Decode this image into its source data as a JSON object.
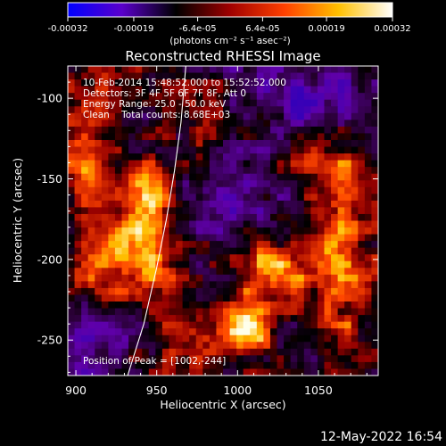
{
  "colorbar": {
    "ticks": [
      "-0.00032",
      "-0.00019",
      "-6.4e-05",
      "6.4e-05",
      "0.00019",
      "0.00032"
    ],
    "units_text": "(photons cm⁻² s⁻¹ asec⁻²)",
    "min": -0.00032,
    "max": 0.00032,
    "colors": [
      "#0000ff",
      "#5a00cc",
      "#000000",
      "#a00000",
      "#ff4000",
      "#ffc000",
      "#ffffff"
    ]
  },
  "chart_data": {
    "type": "heatmap",
    "title": "Reconstructed RHESSI Image",
    "xlabel": "Heliocentric X (arcsec)",
    "ylabel": "Heliocentric Y (arcsec)",
    "xlim": [
      895,
      1087
    ],
    "ylim": [
      -272,
      -80
    ],
    "x_ticks": [
      900,
      950,
      1000,
      1050
    ],
    "y_ticks": [
      -100,
      -150,
      -200,
      -250
    ],
    "annotations": [
      "10-Feb-2014 15:48:52.000 to 15:52:52.000",
      "Detectors: 3F 4F 5F 6F 7F 8F, Att 0",
      "Energy Range: 25.0 - 50.0 keV",
      "Clean    Total counts: 8.68E+03"
    ],
    "peak_label": "Position of Peak = [1002,-244]",
    "peak": [
      1002,
      -244
    ],
    "limb": [
      [
        932,
        -272
      ],
      [
        942,
        -240
      ],
      [
        950,
        -205
      ],
      [
        956,
        -175
      ],
      [
        961,
        -145
      ],
      [
        965,
        -115
      ],
      [
        968,
        -80
      ]
    ],
    "sources": [
      {
        "x": 1002,
        "y": -244,
        "sx": 11,
        "sy": 9,
        "a": 1.0
      },
      {
        "x": 1020,
        "y": -208,
        "sx": 16,
        "sy": 14,
        "a": 0.85
      },
      {
        "x": 945,
        "y": -180,
        "sx": 14,
        "sy": 28,
        "a": 0.85
      },
      {
        "x": 915,
        "y": -205,
        "sx": 15,
        "sy": 14,
        "a": 0.55
      },
      {
        "x": 905,
        "y": -130,
        "sx": 12,
        "sy": 40,
        "a": 0.55
      },
      {
        "x": 970,
        "y": -255,
        "sx": 20,
        "sy": 12,
        "a": 0.45
      },
      {
        "x": 1065,
        "y": -195,
        "sx": 14,
        "sy": 45,
        "a": 0.6
      },
      {
        "x": 1050,
        "y": -140,
        "sx": 18,
        "sy": 12,
        "a": 0.35
      },
      {
        "x": 985,
        "y": -110,
        "sx": 20,
        "sy": 15,
        "a": 0.3
      }
    ],
    "negative_regions": [
      {
        "x": 1040,
        "y": -100,
        "sx": 35,
        "sy": 22,
        "a": 0.75
      },
      {
        "x": 905,
        "y": -250,
        "sx": 22,
        "sy": 20,
        "a": 0.7
      },
      {
        "x": 995,
        "y": -160,
        "sx": 25,
        "sy": 20,
        "a": 0.5
      }
    ]
  },
  "timestamp": "12-May-2022 16:54"
}
